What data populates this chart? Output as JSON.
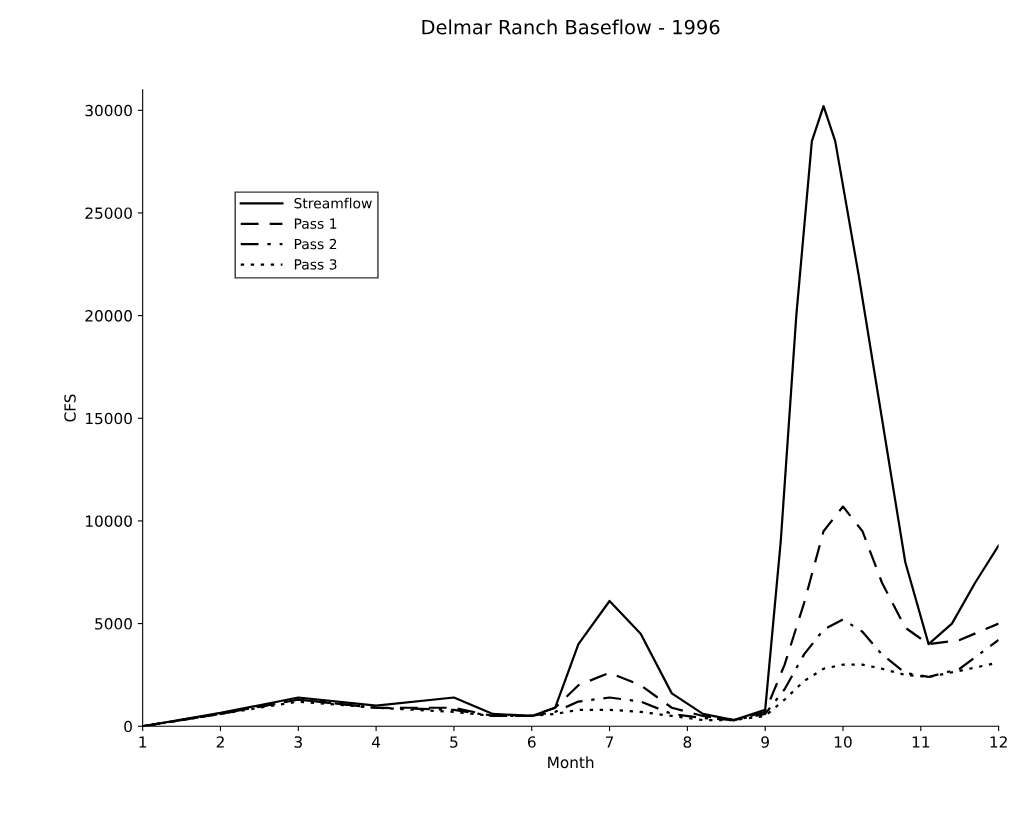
{
  "chart_data": {
    "type": "line",
    "title": "Delmar Ranch Baseflow - 1996",
    "xlabel": "Month",
    "ylabel": "CFS",
    "xlim": [
      1,
      12
    ],
    "xticks": [
      1,
      2,
      3,
      4,
      5,
      6,
      7,
      8,
      9,
      10,
      11,
      12
    ],
    "ylim": [
      0,
      31000
    ],
    "yticks": [
      0,
      5000,
      10000,
      15000,
      20000,
      25000,
      30000
    ],
    "grid": false,
    "legend": "upper left",
    "marker": "none",
    "series": [
      {
        "name": "Streamflow",
        "color": "#000000",
        "line_style": "solid",
        "x": [
          1,
          2,
          3,
          4,
          5,
          5.5,
          6,
          6.3,
          6.6,
          7,
          7.4,
          7.8,
          8.2,
          8.6,
          9,
          9.2,
          9.4,
          9.6,
          9.75,
          9.9,
          10.2,
          10.5,
          10.8,
          11.1,
          11.4,
          11.7,
          12
        ],
        "values": [
          0,
          650,
          1400,
          1000,
          1400,
          600,
          500,
          900,
          4000,
          6100,
          4500,
          1600,
          600,
          300,
          800,
          9000,
          20000,
          28500,
          30200,
          28500,
          22000,
          15000,
          8000,
          4000,
          5000,
          7000,
          8800
        ]
      },
      {
        "name": "Pass 1",
        "color": "#000000",
        "line_style": "dashed",
        "x": [
          1,
          2,
          3,
          4,
          5,
          5.5,
          6,
          6.3,
          6.6,
          7,
          7.4,
          7.8,
          8.2,
          8.6,
          9,
          9.25,
          9.5,
          9.75,
          10,
          10.25,
          10.5,
          10.8,
          11.1,
          11.5,
          12
        ],
        "values": [
          0,
          600,
          1300,
          900,
          900,
          500,
          500,
          900,
          2000,
          2600,
          2000,
          900,
          500,
          300,
          700,
          3000,
          6000,
          9500,
          10700,
          9500,
          7000,
          4800,
          4000,
          4200,
          5000
        ]
      },
      {
        "name": "Pass 2",
        "color": "#000000",
        "line_style": "dashdot",
        "x": [
          1,
          2,
          3,
          4,
          5,
          5.5,
          6,
          6.3,
          6.6,
          7,
          7.4,
          7.8,
          8.2,
          8.6,
          9,
          9.25,
          9.5,
          9.75,
          10,
          10.25,
          10.5,
          10.8,
          11.1,
          11.5,
          12
        ],
        "values": [
          0,
          600,
          1300,
          900,
          800,
          500,
          500,
          700,
          1200,
          1400,
          1200,
          600,
          400,
          300,
          600,
          1800,
          3500,
          4700,
          5200,
          4600,
          3500,
          2600,
          2400,
          2800,
          4200
        ]
      },
      {
        "name": "Pass 3",
        "color": "#000000",
        "line_style": "dotted",
        "x": [
          1,
          2,
          3,
          4,
          5,
          5.5,
          6,
          6.3,
          6.6,
          7,
          7.4,
          7.8,
          8.2,
          8.6,
          9,
          9.25,
          9.5,
          9.75,
          10,
          10.25,
          10.5,
          10.8,
          11.1,
          11.5,
          12
        ],
        "values": [
          0,
          600,
          1200,
          900,
          700,
          500,
          500,
          600,
          800,
          800,
          700,
          500,
          300,
          300,
          500,
          1300,
          2200,
          2800,
          3000,
          3000,
          2800,
          2500,
          2400,
          2700,
          3100
        ]
      }
    ]
  }
}
